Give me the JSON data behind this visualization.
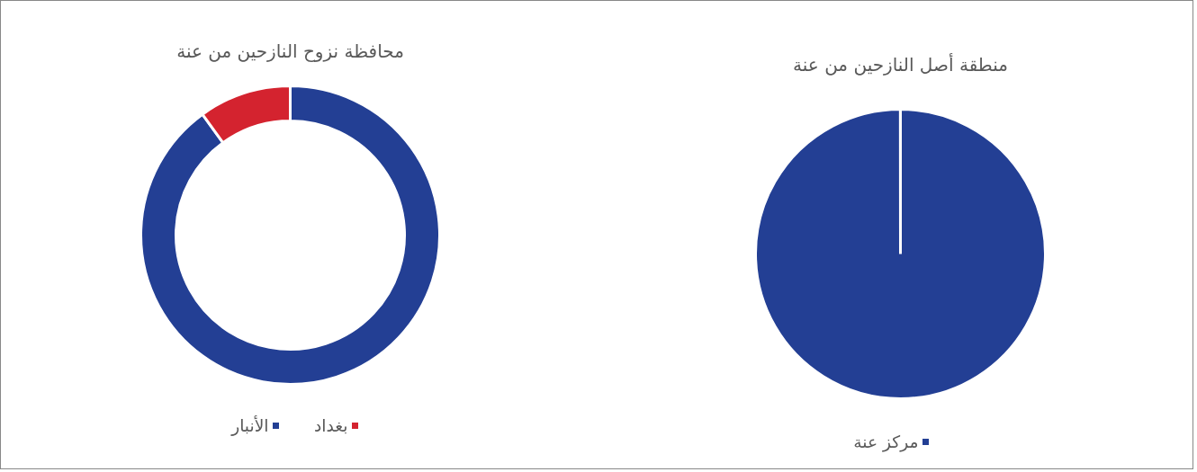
{
  "chart_data": [
    {
      "type": "donut",
      "title": "محافظة نزوح النازحين من عنة",
      "categories": [
        "الأنبار",
        "بغداد"
      ],
      "values": [
        90,
        10
      ],
      "colors": [
        "#233f94",
        "#d4232f"
      ],
      "legend": "bottom"
    },
    {
      "type": "pie",
      "title": "منطقة أصل النازحين من عنة",
      "categories": [
        "مركز عنة"
      ],
      "values": [
        100
      ],
      "colors": [
        "#233f94"
      ],
      "legend": "bottom"
    }
  ]
}
